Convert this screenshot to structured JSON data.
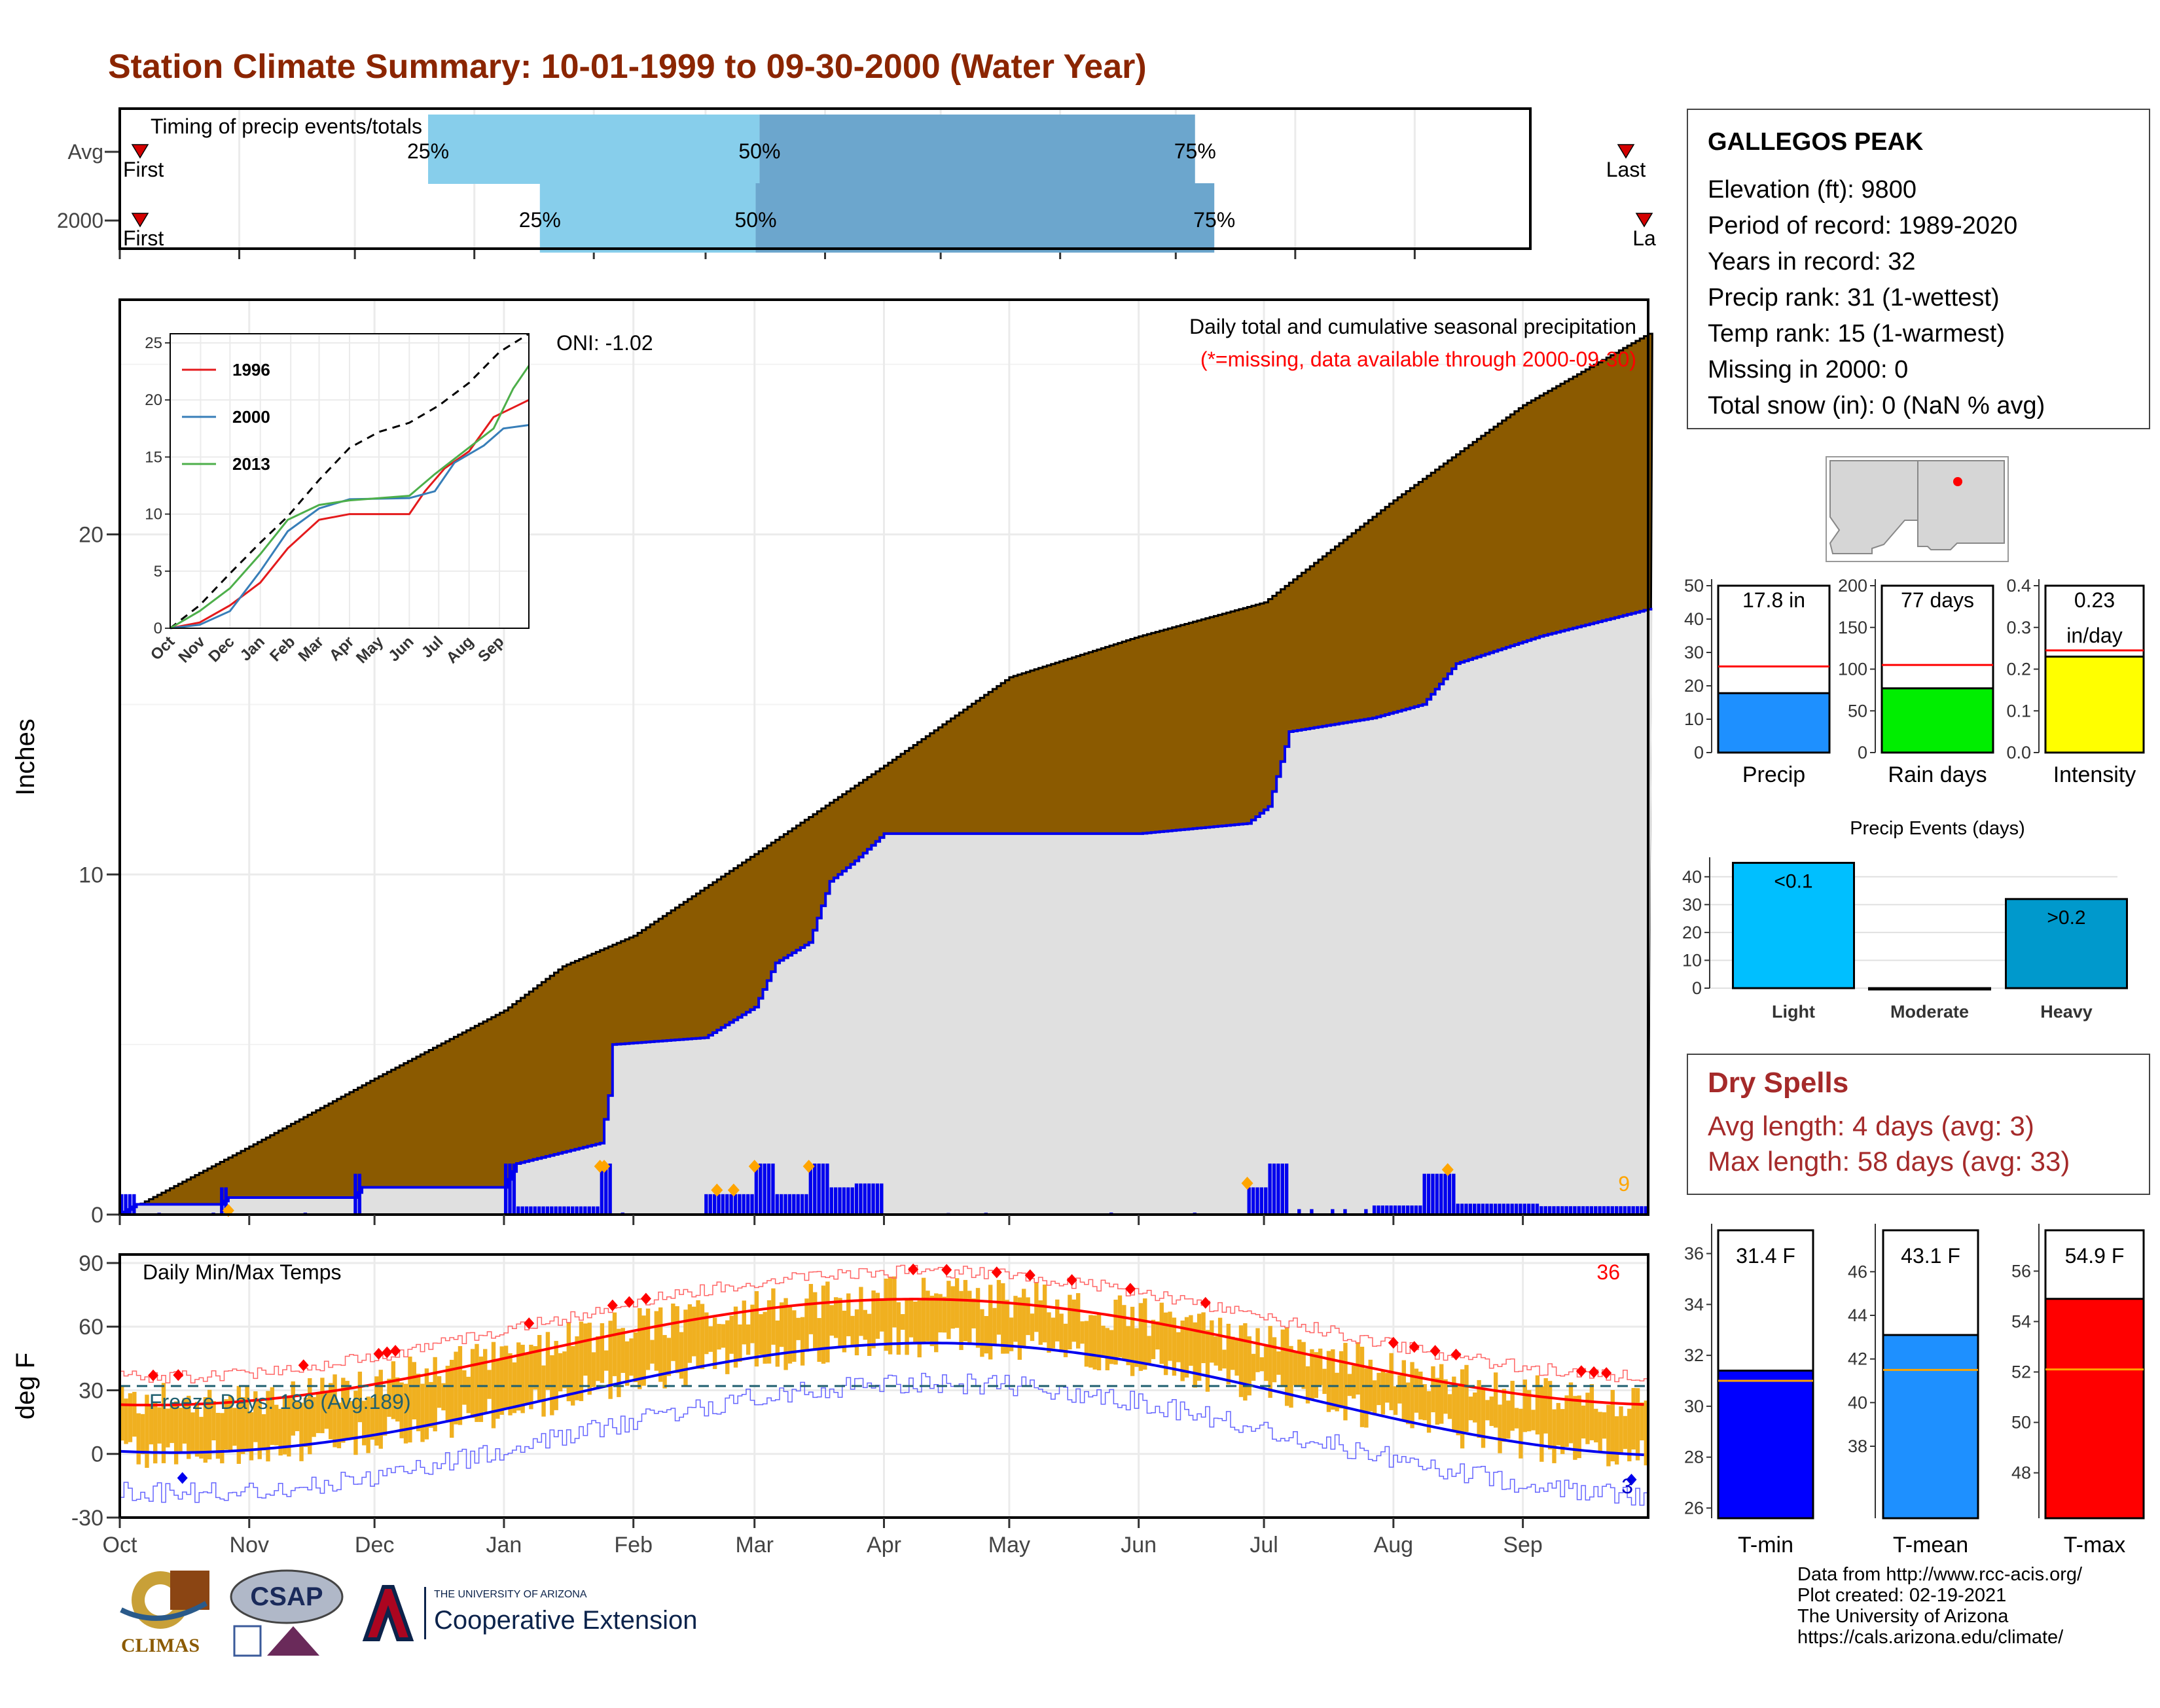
{
  "title": "Station Climate Summary: 10-01-1999 to 09-30-2000 (Water Year)",
  "timing": {
    "label": "Timing of precip events/totals",
    "rows": [
      {
        "name": "Avg",
        "p25_doy": 80,
        "p50_doy": 166,
        "p75_doy": 279,
        "first_label": "First",
        "last_label": "Last"
      },
      {
        "name": "2000",
        "p25_doy": 109,
        "p50_doy": 165,
        "p75_doy": 284,
        "first_label": "First",
        "last_label": "La"
      }
    ],
    "pct_labels": [
      "25%",
      "50%",
      "75%"
    ],
    "colors": {
      "low": "#87CEEB",
      "high": "#6CA6CD",
      "marker": "#D40000"
    }
  },
  "months": [
    "Oct",
    "Nov",
    "Dec",
    "Jan",
    "Feb",
    "Mar",
    "Apr",
    "May",
    "Jun",
    "Jul",
    "Aug",
    "Sep"
  ],
  "precip": {
    "ylabel": "Inches",
    "title": "Daily total and cumulative seasonal precipitation",
    "note": "(*=missing, data available through 2000-09-30)",
    "oni": "ONI: -1.02",
    "extreme_count": "9",
    "colors": {
      "avg_fill": "#8B5A00",
      "obs_fill": "#E0E0E0",
      "obs_line": "#0000EE",
      "daily_bar": "#0000EE",
      "extreme": "#FFA500"
    }
  },
  "inset": {
    "months": [
      "Oct",
      "Nov",
      "Dec",
      "Jan",
      "Feb",
      "Mar",
      "Apr",
      "May",
      "Jun",
      "Jul",
      "Aug",
      "Sep"
    ],
    "legend": [
      {
        "name": "1996",
        "color": "#E41A1C"
      },
      {
        "name": "2000",
        "color": "#377EB8"
      },
      {
        "name": "2013",
        "color": "#4DAF4A"
      }
    ]
  },
  "temps": {
    "ylabel": "deg F",
    "title": "Daily Min/Max Temps",
    "freeze_text": "Freeze Days: 186 (Avg:189)",
    "max_count": "36",
    "min_count": "3",
    "colors": {
      "bar": "#F0B020",
      "max_avg": "#FF0000",
      "min_avg": "#0000EE",
      "max_rec": "#FF6666",
      "min_rec": "#6666FF",
      "freeze_line": "#1F5F6F"
    }
  },
  "station": {
    "name": "GALLEGOS PEAK",
    "lines": [
      "Elevation (ft): 9800",
      "Period of record: 1989-2020",
      "Years in record: 32",
      "Precip rank: 31 (1-wettest)",
      "Temp rank: 15 (1-warmest)",
      "Missing in 2000: 0",
      "Total snow (in): 0 (NaN % avg)"
    ]
  },
  "summary_bars": [
    {
      "name": "Precip",
      "value": 17.8,
      "avg": 25.8,
      "label_line1": "17.8 in",
      "label_line2": "",
      "ymax": 50,
      "ticks": [
        "0",
        "10",
        "20",
        "30",
        "40",
        "50"
      ],
      "color": "#1E90FF"
    },
    {
      "name": "Rain days",
      "value": 77,
      "avg": 105,
      "label_line1": "77 days",
      "label_line2": "",
      "ymax": 200,
      "ticks": [
        "0",
        "50",
        "100",
        "150",
        "200"
      ],
      "color": "#00EE00"
    },
    {
      "name": "Intensity",
      "value": 0.23,
      "avg": 0.245,
      "label_line1": "0.23",
      "label_line2": "in/day",
      "ymax": 0.4,
      "ticks": [
        "0.0",
        "0.1",
        "0.2",
        "0.3",
        "0.4"
      ],
      "color": "#FFFF00"
    }
  ],
  "events": {
    "title": "Precip Events (days)",
    "categories": [
      "Light",
      "Moderate",
      "Heavy"
    ],
    "values": [
      45,
      0,
      32
    ],
    "labels": [
      "<0.1",
      "",
      ">0.2"
    ],
    "colors": [
      "#00BFFF",
      "#1E90FF",
      "#0099CC"
    ],
    "ticks": [
      "0",
      "10",
      "20",
      "30",
      "40"
    ]
  },
  "dry_spells": {
    "title": "Dry Spells",
    "avg_line": "Avg length: 4 days (avg: 3)",
    "max_line": "Max length: 58 days (avg: 33)"
  },
  "temp_bars": [
    {
      "name": "T-min",
      "value": 31.4,
      "avg": 31.0,
      "label": "31.4 F",
      "ymin": 25.6,
      "ymax": 36.4,
      "ticks": [
        "26",
        "28",
        "30",
        "32",
        "34",
        "36"
      ],
      "color": "#0000FF"
    },
    {
      "name": "T-mean",
      "value": 43.1,
      "avg": 41.5,
      "label": "43.1 F",
      "ymin": 34.7,
      "ymax": 47.3,
      "ticks": [
        "38",
        "40",
        "42",
        "44",
        "46"
      ],
      "color": "#1E90FF"
    },
    {
      "name": "T-max",
      "value": 54.9,
      "avg": 52.1,
      "label": "54.9 F",
      "ymin": 46.2,
      "ymax": 57.1,
      "ticks": [
        "48",
        "50",
        "52",
        "54",
        "56"
      ],
      "color": "#FF0000"
    }
  ],
  "footer": [
    "Data from http://www.rcc-acis.org/",
    "Plot created: 02-19-2021",
    "The University of Arizona",
    "https://cals.arizona.edu/climate/"
  ],
  "logos": {
    "climas": "CLIMAS",
    "csap": "CSAP",
    "ua_small": "THE UNIVERSITY OF ARIZONA",
    "ua_big": "Cooperative Extension"
  }
}
